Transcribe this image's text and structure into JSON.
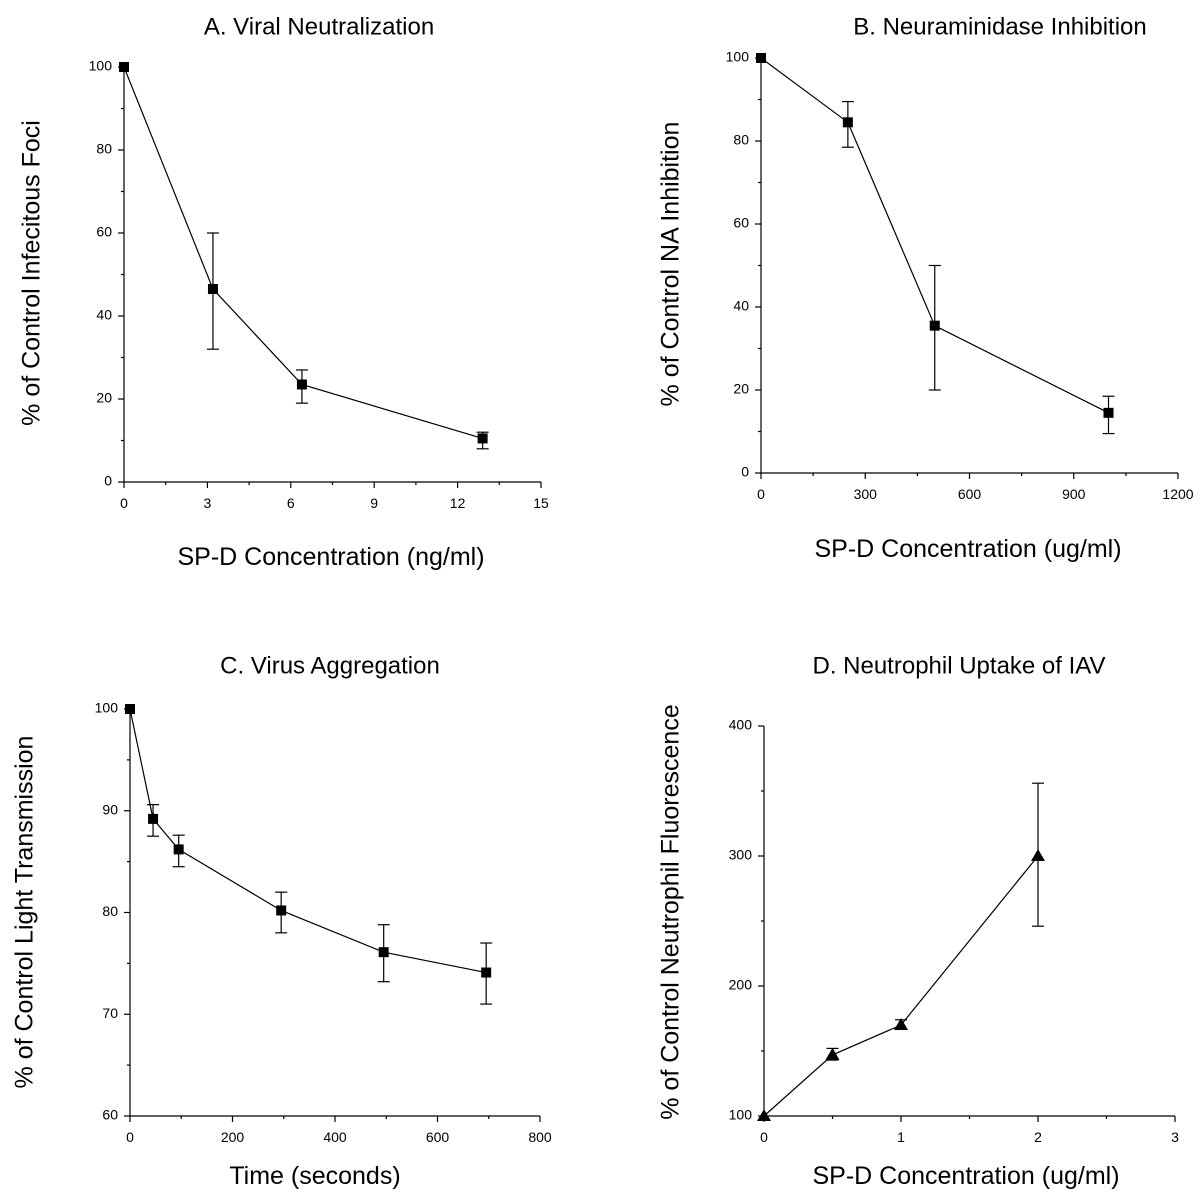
{
  "chart_data": [
    {
      "type": "line",
      "title": "A. Viral Neutralization",
      "xlabel": "SP-D Concentration (ng/ml)",
      "ylabel": "% of Control Infecitous Foci",
      "xlim": [
        0,
        15
      ],
      "ylim": [
        0,
        100
      ],
      "xticks": [
        "0",
        "3",
        "6",
        "9",
        "12",
        "15"
      ],
      "yticks": [
        "0",
        "20",
        "40",
        "60",
        "80",
        "100"
      ],
      "marker": "square",
      "grid": false,
      "series": [
        {
          "x": [
            0,
            3.2,
            6.4,
            12.9
          ],
          "y": [
            100,
            46.5,
            23.5,
            10.5
          ],
          "err_lo": [
            100,
            32,
            19,
            8
          ],
          "err_hi": [
            100,
            60,
            27,
            12
          ]
        }
      ]
    },
    {
      "type": "line",
      "title": "B. Neuraminidase Inhibition",
      "xlabel": "SP-D Concentration (ug/ml)",
      "ylabel": "% of Control NA Inhibition",
      "xlim": [
        0,
        1200
      ],
      "ylim": [
        0,
        100
      ],
      "xticks": [
        "0",
        "300",
        "600",
        "900",
        "1200"
      ],
      "yticks": [
        "0",
        "20",
        "40",
        "60",
        "80",
        "100"
      ],
      "marker": "square",
      "grid": false,
      "series": [
        {
          "x": [
            0,
            250,
            500,
            1000
          ],
          "y": [
            100,
            84.5,
            35.5,
            14.5
          ],
          "err_lo": [
            100,
            78.5,
            20,
            9.5
          ],
          "err_hi": [
            100,
            89.5,
            50,
            18.5
          ]
        }
      ]
    },
    {
      "type": "line",
      "title": "C. Virus Aggregation",
      "xlabel": "Time (seconds)",
      "ylabel": "% of Control Light Transmission",
      "xlim": [
        0,
        800
      ],
      "ylim": [
        60,
        100
      ],
      "xticks": [
        "0",
        "200",
        "400",
        "600",
        "800"
      ],
      "yticks": [
        "60",
        "70",
        "80",
        "90",
        "100"
      ],
      "marker": "square",
      "grid": false,
      "series": [
        {
          "x": [
            0,
            45,
            95,
            295,
            495,
            695
          ],
          "y": [
            100,
            89.2,
            86.2,
            80.2,
            76.1,
            74.1
          ],
          "err_lo": [
            100,
            87.5,
            84.5,
            78,
            73.2,
            71
          ],
          "err_hi": [
            100,
            90.6,
            87.6,
            82,
            78.8,
            77
          ]
        }
      ]
    },
    {
      "type": "line",
      "title": "D. Neutrophil Uptake of IAV",
      "xlabel": "SP-D Concentration (ug/ml)",
      "ylabel": "% of Control Neutrophil Fluorescence",
      "xlim": [
        0,
        3
      ],
      "ylim": [
        100,
        400
      ],
      "xticks": [
        "0",
        "1",
        "2",
        "3"
      ],
      "yticks": [
        "100",
        "200",
        "300",
        "400"
      ],
      "marker": "triangle",
      "grid": false,
      "series": [
        {
          "x": [
            0,
            0.5,
            1,
            2
          ],
          "y": [
            100,
            147,
            170,
            300
          ],
          "err_lo": [
            100,
            143,
            167,
            246
          ],
          "err_hi": [
            100,
            152,
            174,
            356
          ]
        }
      ]
    }
  ]
}
